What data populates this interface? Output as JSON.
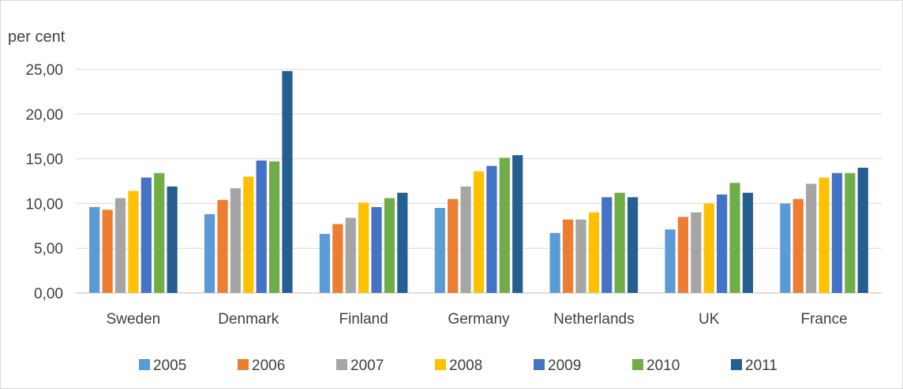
{
  "chart_data": {
    "type": "bar",
    "title": "",
    "xlabel": "",
    "ylabel": "per cent",
    "ylim": [
      0,
      25
    ],
    "yticks": [
      "0,00",
      "5,00",
      "10,00",
      "15,00",
      "20,00",
      "25,00"
    ],
    "grid": true,
    "legend_position": "bottom",
    "categories": [
      "Sweden",
      "Denmark",
      "Finland",
      "Germany",
      "Netherlands",
      "UK",
      "France"
    ],
    "series": [
      {
        "name": "2005",
        "color": "#5b9bd5",
        "values": [
          9.6,
          8.8,
          6.6,
          9.5,
          6.7,
          7.1,
          10.0
        ]
      },
      {
        "name": "2006",
        "color": "#ed7d31",
        "values": [
          9.3,
          10.4,
          7.7,
          10.5,
          8.2,
          8.5,
          10.5
        ]
      },
      {
        "name": "2007",
        "color": "#a5a5a5",
        "values": [
          10.6,
          11.7,
          8.4,
          11.9,
          8.2,
          9.0,
          12.2
        ]
      },
      {
        "name": "2008",
        "color": "#ffc000",
        "values": [
          11.4,
          13.0,
          10.1,
          13.6,
          9.0,
          10.0,
          12.9
        ]
      },
      {
        "name": "2009",
        "color": "#4472c4",
        "values": [
          12.9,
          14.8,
          9.6,
          14.2,
          10.7,
          11.0,
          13.4
        ]
      },
      {
        "name": "2010",
        "color": "#70ad47",
        "values": [
          13.4,
          14.7,
          10.6,
          15.1,
          11.2,
          12.3,
          13.4
        ]
      },
      {
        "name": "2011",
        "color": "#255e91",
        "values": [
          11.9,
          24.8,
          11.2,
          15.4,
          10.7,
          11.2,
          14.0
        ]
      }
    ]
  }
}
